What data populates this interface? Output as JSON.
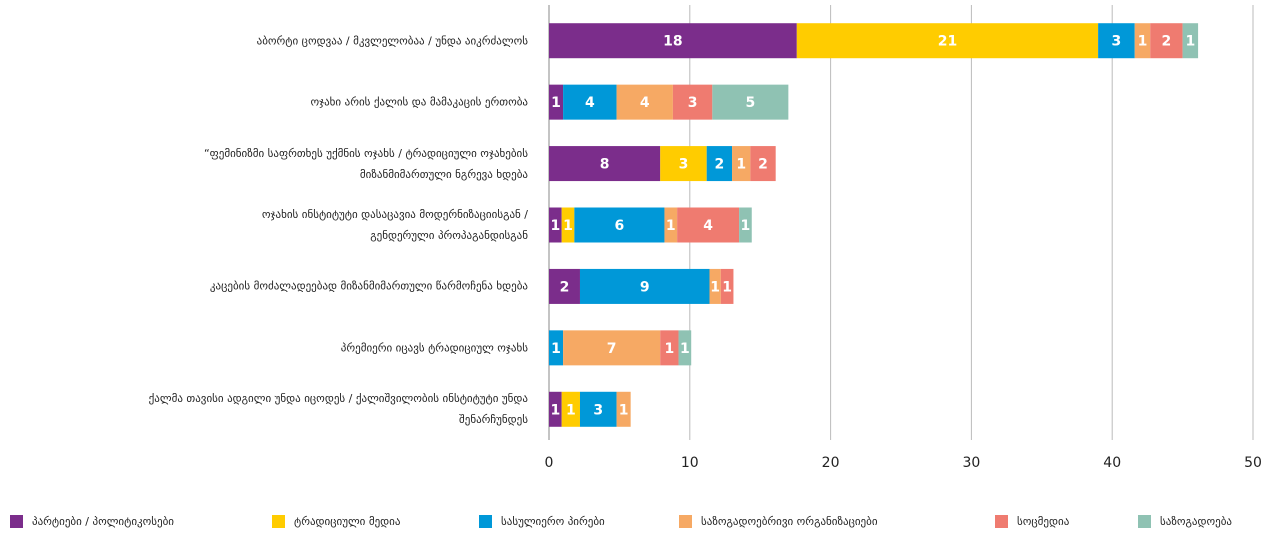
{
  "chart_data": {
    "type": "stacked-bar-horizontal",
    "categories": [
      "აბორტი ცოდვაა / მკვლელობაა / უნდა აიკრძალოს",
      "ოჯახი არის ქალის და მამაკაცის ერთობა",
      "“ფემინიზმი საფრთხეს უქმნის ოჯახს / ტრადიციული ოჯახების\nმიზანმიმართული ნგრევა ხდება",
      "ოჯახის ინსტიტუტი დასაცავია მოდერნიზაციისგან /\nგენდერული პროპაგანდისგან",
      "კაცების მოძალადეებად მიზანმიმართული წარმოჩენა ხდება",
      "პრემიერი იცავს ტრადიციულ ოჯახს",
      "ქალმა თავისი ადგილი უნდა იცოდეს / ქალიშვილობის ინსტიტუტი უნდა\nშენარჩუნდეს"
    ],
    "series": [
      {
        "name": "პარტიები / პოლიტიკოსები",
        "color": "#7b2d8b",
        "values": [
          17.6,
          1.0,
          7.9,
          0.9,
          2.2,
          null,
          0.9
        ],
        "value_labels": [
          "18",
          "1",
          "8",
          "1",
          "2",
          null,
          "1"
        ]
      },
      {
        "name": "ტრადიციული მედია",
        "color": "#ffcc00",
        "values": [
          21.4,
          null,
          3.3,
          0.9,
          null,
          null,
          1.3
        ],
        "value_labels": [
          "21",
          null,
          "3",
          "1",
          null,
          null,
          "1"
        ]
      },
      {
        "name": "სასულიერო პირები",
        "color": "#0098d8",
        "values": [
          2.6,
          3.8,
          1.8,
          6.4,
          9.2,
          1.0,
          2.6
        ],
        "value_labels": [
          "3",
          "4",
          "2",
          "6",
          "9",
          "1",
          "3"
        ]
      },
      {
        "name": "საზოგადოებრივი ორგანიზაციები",
        "color": "#f6a964",
        "values": [
          1.1,
          4.0,
          1.3,
          0.9,
          0.8,
          6.9,
          1.0
        ],
        "value_labels": [
          "1",
          "4",
          "1",
          "1",
          "1",
          "7",
          "1"
        ]
      },
      {
        "name": "სოცმედია",
        "color": "#ef7b70",
        "values": [
          2.3,
          2.8,
          1.8,
          4.4,
          0.9,
          1.3,
          null
        ],
        "value_labels": [
          "2",
          "3",
          "2",
          "4",
          "1",
          "1",
          null
        ]
      },
      {
        "name": "საზოგადოება",
        "color": "#8fc2b3",
        "values": [
          1.1,
          5.4,
          null,
          0.9,
          null,
          0.9,
          null
        ],
        "value_labels": [
          "1",
          "5",
          null,
          "1",
          null,
          "1",
          null
        ]
      }
    ],
    "xlim": [
      0,
      50
    ],
    "xticks": [
      0,
      10,
      20,
      30,
      40,
      50
    ],
    "grid": true
  }
}
